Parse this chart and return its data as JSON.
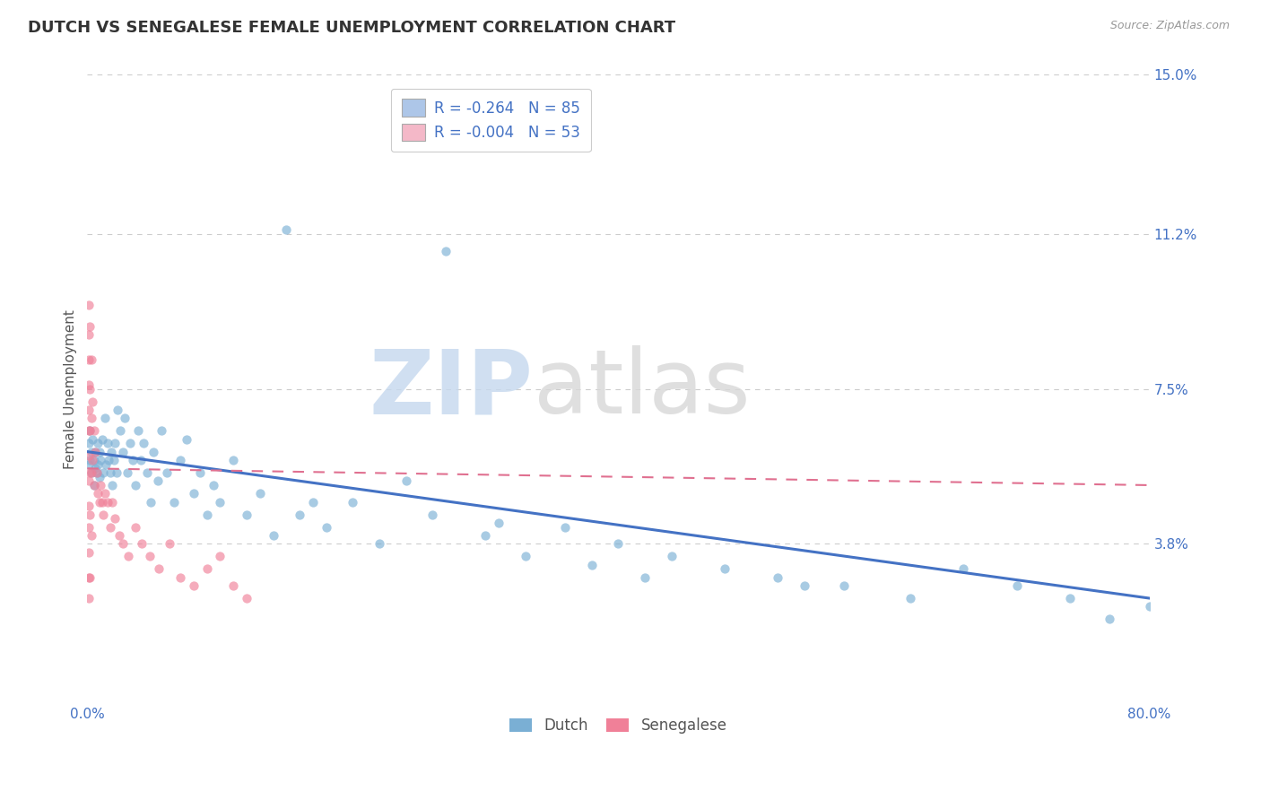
{
  "title": "DUTCH VS SENEGALESE FEMALE UNEMPLOYMENT CORRELATION CHART",
  "source": "Source: ZipAtlas.com",
  "ylabel": "Female Unemployment",
  "xlim": [
    0.0,
    0.8
  ],
  "ylim": [
    0.0,
    0.15
  ],
  "yticks": [
    0.038,
    0.075,
    0.112,
    0.15
  ],
  "ytick_labels": [
    "3.8%",
    "7.5%",
    "11.2%",
    "15.0%"
  ],
  "xticks": [
    0.0,
    0.8
  ],
  "xtick_labels": [
    "0.0%",
    "80.0%"
  ],
  "dutch_R": -0.264,
  "dutch_N": 85,
  "senegalese_R": -0.004,
  "senegalese_N": 53,
  "dutch_color": "#adc6e8",
  "dutch_dot_color": "#7aafd4",
  "senegalese_color": "#f4b8c8",
  "senegalese_dot_color": "#f08098",
  "trend_dutch_color": "#4472c4",
  "trend_senegalese_color": "#e07090",
  "background_color": "#ffffff",
  "watermark_zip": "ZIP",
  "watermark_atlas": "atlas",
  "legend_R_color": "#4472c4",
  "dutch_trend_start_y": 0.06,
  "dutch_trend_end_y": 0.025,
  "senegalese_trend_start_y": 0.056,
  "senegalese_trend_end_y": 0.052,
  "dutch_scatter_x": [
    0.001,
    0.001,
    0.002,
    0.002,
    0.003,
    0.003,
    0.004,
    0.005,
    0.005,
    0.006,
    0.006,
    0.007,
    0.008,
    0.008,
    0.009,
    0.009,
    0.01,
    0.011,
    0.012,
    0.013,
    0.014,
    0.015,
    0.016,
    0.017,
    0.018,
    0.019,
    0.02,
    0.021,
    0.022,
    0.023,
    0.025,
    0.027,
    0.028,
    0.03,
    0.032,
    0.034,
    0.036,
    0.038,
    0.04,
    0.042,
    0.045,
    0.048,
    0.05,
    0.053,
    0.056,
    0.06,
    0.065,
    0.07,
    0.075,
    0.08,
    0.085,
    0.09,
    0.095,
    0.1,
    0.11,
    0.12,
    0.13,
    0.14,
    0.15,
    0.16,
    0.17,
    0.18,
    0.2,
    0.22,
    0.24,
    0.26,
    0.3,
    0.33,
    0.36,
    0.4,
    0.44,
    0.48,
    0.52,
    0.57,
    0.62,
    0.66,
    0.7,
    0.74,
    0.77,
    0.8,
    0.27,
    0.31,
    0.38,
    0.42,
    0.54
  ],
  "dutch_scatter_y": [
    0.062,
    0.057,
    0.065,
    0.058,
    0.06,
    0.055,
    0.063,
    0.058,
    0.052,
    0.06,
    0.056,
    0.055,
    0.062,
    0.057,
    0.06,
    0.054,
    0.058,
    0.063,
    0.055,
    0.068,
    0.057,
    0.062,
    0.058,
    0.055,
    0.06,
    0.052,
    0.058,
    0.062,
    0.055,
    0.07,
    0.065,
    0.06,
    0.068,
    0.055,
    0.062,
    0.058,
    0.052,
    0.065,
    0.058,
    0.062,
    0.055,
    0.048,
    0.06,
    0.053,
    0.065,
    0.055,
    0.048,
    0.058,
    0.063,
    0.05,
    0.055,
    0.045,
    0.052,
    0.048,
    0.058,
    0.045,
    0.05,
    0.04,
    0.113,
    0.045,
    0.048,
    0.042,
    0.048,
    0.038,
    0.053,
    0.045,
    0.04,
    0.035,
    0.042,
    0.038,
    0.035,
    0.032,
    0.03,
    0.028,
    0.025,
    0.032,
    0.028,
    0.025,
    0.02,
    0.023,
    0.108,
    0.043,
    0.033,
    0.03,
    0.028
  ],
  "senegalese_scatter_x": [
    0.001,
    0.001,
    0.001,
    0.001,
    0.001,
    0.001,
    0.001,
    0.001,
    0.001,
    0.001,
    0.001,
    0.001,
    0.002,
    0.002,
    0.002,
    0.002,
    0.002,
    0.003,
    0.003,
    0.003,
    0.004,
    0.004,
    0.005,
    0.005,
    0.006,
    0.007,
    0.008,
    0.009,
    0.01,
    0.011,
    0.012,
    0.013,
    0.015,
    0.017,
    0.019,
    0.021,
    0.024,
    0.027,
    0.031,
    0.036,
    0.041,
    0.047,
    0.054,
    0.062,
    0.07,
    0.08,
    0.09,
    0.1,
    0.11,
    0.12,
    0.001,
    0.002,
    0.003
  ],
  "senegalese_scatter_y": [
    0.095,
    0.088,
    0.082,
    0.076,
    0.07,
    0.065,
    0.059,
    0.053,
    0.047,
    0.042,
    0.036,
    0.03,
    0.09,
    0.075,
    0.065,
    0.055,
    0.045,
    0.082,
    0.068,
    0.055,
    0.072,
    0.058,
    0.065,
    0.052,
    0.06,
    0.055,
    0.05,
    0.048,
    0.052,
    0.048,
    0.045,
    0.05,
    0.048,
    0.042,
    0.048,
    0.044,
    0.04,
    0.038,
    0.035,
    0.042,
    0.038,
    0.035,
    0.032,
    0.038,
    0.03,
    0.028,
    0.032,
    0.035,
    0.028,
    0.025,
    0.025,
    0.03,
    0.04
  ]
}
